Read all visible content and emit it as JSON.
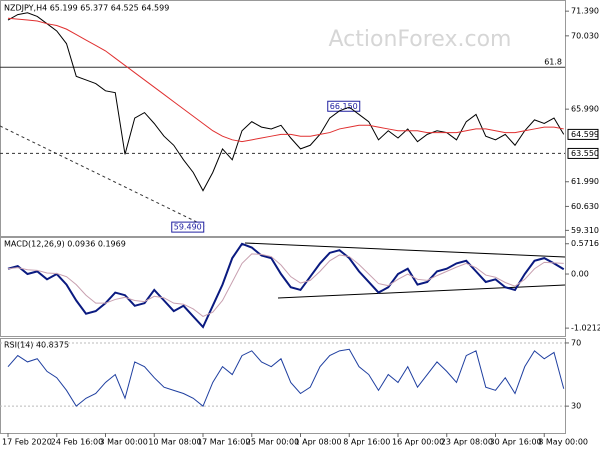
{
  "chart_data": [
    {
      "type": "line",
      "title": "NZDJPY,H4  65.199 65.377 64.525 64.599",
      "watermark": "ActionForex.com",
      "categories": [
        "17 Feb 2020",
        null,
        null,
        null,
        null,
        "24 Feb 16:00",
        null,
        null,
        null,
        null,
        "3 Mar 00:00",
        null,
        null,
        null,
        null,
        "10 Mar 08:00",
        null,
        null,
        null,
        null,
        "17 Mar 16:00",
        null,
        null,
        null,
        null,
        "25 Mar 00:00",
        null,
        null,
        null,
        null,
        "1 Apr 08:00",
        null,
        null,
        null,
        null,
        "8 Apr 16:00",
        null,
        null,
        null,
        null,
        "16 Apr 00:00",
        null,
        null,
        null,
        null,
        "23 Apr 08:00",
        null,
        null,
        null,
        null,
        "30 Apr 16:00",
        null,
        null,
        null,
        null,
        "8 May 00:00",
        null,
        null
      ],
      "series": [
        {
          "name": "NZDJPY",
          "color": "#000000",
          "values": [
            70.9,
            71.2,
            71.3,
            71.1,
            70.7,
            70.3,
            69.6,
            67.8,
            67.6,
            67.4,
            67.0,
            66.9,
            63.5,
            65.5,
            65.8,
            65.2,
            64.5,
            64.0,
            63.2,
            62.5,
            61.5,
            62.5,
            63.8,
            63.2,
            64.8,
            65.3,
            65.0,
            64.9,
            65.1,
            64.4,
            63.8,
            64.0,
            64.6,
            65.5,
            65.9,
            66.1,
            65.7,
            65.3,
            64.3,
            64.8,
            64.4,
            64.9,
            64.2,
            64.6,
            64.8,
            64.7,
            64.3,
            65.3,
            65.7,
            64.5,
            64.3,
            64.6,
            64.0,
            64.8,
            65.4,
            65.2,
            65.5,
            64.6
          ]
        },
        {
          "name": "MA",
          "color": "#e03030",
          "values": [
            71.0,
            70.95,
            70.9,
            70.85,
            70.7,
            70.6,
            70.4,
            70.1,
            69.8,
            69.5,
            69.2,
            68.8,
            68.4,
            68.0,
            67.6,
            67.2,
            66.8,
            66.4,
            66.0,
            65.6,
            65.2,
            64.8,
            64.5,
            64.3,
            64.2,
            64.3,
            64.4,
            64.5,
            64.6,
            64.6,
            64.5,
            64.5,
            64.6,
            64.7,
            64.9,
            65.0,
            65.1,
            65.1,
            65.0,
            64.9,
            64.8,
            64.8,
            64.8,
            64.7,
            64.7,
            64.7,
            64.7,
            64.8,
            64.9,
            64.9,
            64.8,
            64.7,
            64.7,
            64.8,
            64.9,
            65.0,
            65.0,
            64.9
          ]
        }
      ],
      "ylim": [
        59.0,
        71.95
      ],
      "yticks": [
        {
          "value": 71.39,
          "label": "71.390"
        },
        {
          "value": 70.03,
          "label": "70.030"
        },
        {
          "value": 65.99,
          "label": "65.990"
        },
        {
          "value": 61.99,
          "label": "61.990"
        },
        {
          "value": 60.63,
          "label": "60.630"
        },
        {
          "value": 59.31,
          "label": "59.310"
        }
      ],
      "levels": [
        {
          "label": "61.8",
          "value": 68.3,
          "style": "solid"
        },
        {
          "label": "63.550",
          "value": 63.55,
          "style": "dashed"
        },
        {
          "label": "64.599",
          "value": 64.599,
          "style": "price"
        }
      ],
      "annotations": [
        {
          "label": "66.150",
          "value": 66.15,
          "x": 33
        },
        {
          "label": "59.490",
          "value": 59.49,
          "x": 17
        }
      ]
    },
    {
      "type": "line",
      "title": "MACD(12,26,9) 0.0936 0.1969",
      "series": [
        {
          "name": "MACD",
          "color": "#0a1a80",
          "values": [
            0.1,
            0.15,
            0.0,
            0.05,
            -0.1,
            0.0,
            -0.2,
            -0.5,
            -0.75,
            -0.7,
            -0.55,
            -0.35,
            -0.4,
            -0.6,
            -0.55,
            -0.3,
            -0.5,
            -0.7,
            -0.6,
            -0.8,
            -1.0,
            -0.6,
            -0.2,
            0.3,
            0.57,
            0.5,
            0.35,
            0.3,
            0.0,
            -0.25,
            -0.3,
            -0.05,
            0.2,
            0.4,
            0.45,
            0.3,
            0.05,
            -0.15,
            -0.35,
            -0.25,
            0.0,
            0.1,
            -0.2,
            -0.15,
            0.05,
            0.1,
            0.2,
            0.25,
            0.05,
            -0.15,
            -0.1,
            -0.25,
            -0.3,
            0.0,
            0.25,
            0.3,
            0.2,
            0.09
          ]
        },
        {
          "name": "Signal",
          "color": "#c8a0b0",
          "values": [
            0.1,
            0.12,
            0.08,
            0.07,
            0.02,
            0.01,
            -0.05,
            -0.2,
            -0.4,
            -0.55,
            -0.55,
            -0.48,
            -0.44,
            -0.5,
            -0.52,
            -0.42,
            -0.45,
            -0.55,
            -0.57,
            -0.66,
            -0.8,
            -0.72,
            -0.5,
            -0.15,
            0.2,
            0.38,
            0.37,
            0.33,
            0.17,
            -0.05,
            -0.17,
            -0.12,
            0.05,
            0.25,
            0.36,
            0.33,
            0.18,
            0.0,
            -0.18,
            -0.22,
            -0.1,
            0.0,
            -0.1,
            -0.12,
            -0.03,
            0.05,
            0.13,
            0.2,
            0.12,
            -0.02,
            -0.06,
            -0.16,
            -0.23,
            -0.1,
            0.1,
            0.22,
            0.21,
            0.2
          ]
        }
      ],
      "ylim": [
        -1.17,
        0.68
      ],
      "yticks": [
        0.5716,
        {
          "value": 0,
          "label": "0.00"
        },
        -1.0212
      ]
    },
    {
      "type": "line",
      "title": "RSI(14) 40.8375",
      "series": [
        {
          "name": "RSI",
          "color": "#1f3fa0",
          "values": [
            55,
            62,
            58,
            60,
            52,
            48,
            40,
            30,
            35,
            38,
            45,
            50,
            35,
            58,
            55,
            48,
            42,
            40,
            38,
            35,
            30,
            45,
            55,
            50,
            62,
            65,
            58,
            55,
            60,
            45,
            38,
            42,
            55,
            62,
            65,
            66,
            55,
            50,
            40,
            50,
            45,
            55,
            42,
            50,
            58,
            52,
            45,
            62,
            65,
            42,
            40,
            48,
            38,
            55,
            65,
            60,
            64,
            41
          ]
        }
      ],
      "ylim": [
        13,
        72.5
      ],
      "yticks": [
        70,
        30
      ]
    }
  ]
}
